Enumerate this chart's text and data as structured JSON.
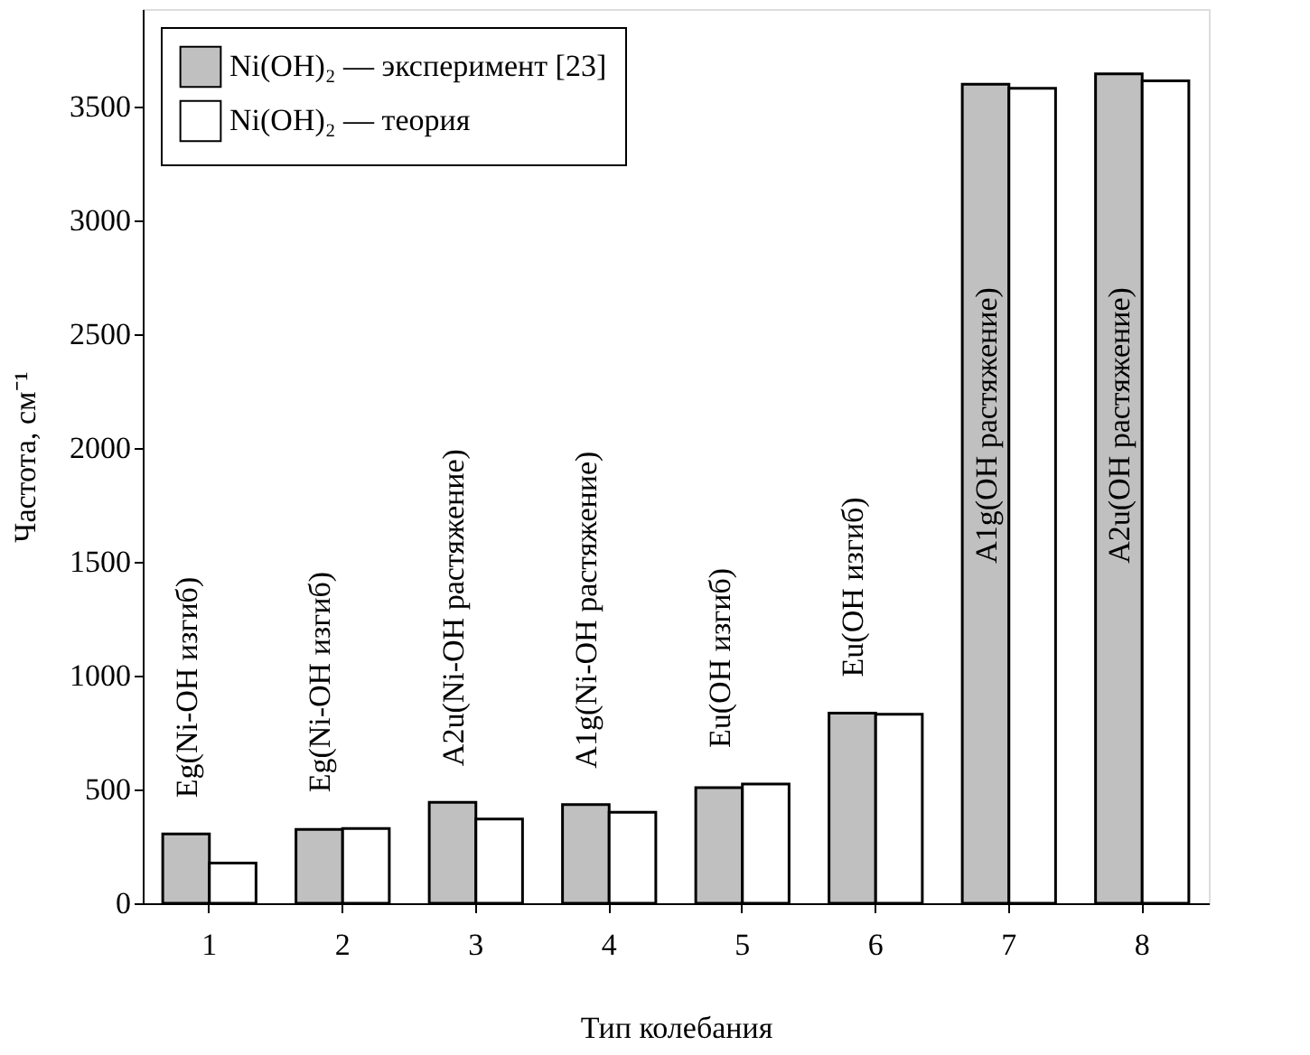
{
  "chart_data": {
    "type": "bar",
    "xlabel": "Тип колебания",
    "ylabel": "Частота, см⁻¹",
    "categories": [
      "1",
      "2",
      "3",
      "4",
      "5",
      "6",
      "7",
      "8"
    ],
    "series": [
      {
        "name": "Ni(OH)₂ — эксперимент [23]",
        "color": "#c0c0c0",
        "values": [
          305,
          325,
          444,
          434,
          508,
          836,
          3600,
          3645
        ]
      },
      {
        "name": "Ni(OH)₂ — теория",
        "color": "#ffffff",
        "values": [
          177,
          328,
          370,
          400,
          524,
          831,
          3582,
          3614
        ]
      }
    ],
    "ylim": [
      0,
      3930
    ],
    "yticks": [
      0,
      500,
      1000,
      1500,
      2000,
      2500,
      3000,
      3500
    ],
    "annotations": [
      "Eg(Ni-OH изгиб)",
      "Eg(Ni-OH изгиб)",
      "A2u(Ni-OH растяжение)",
      "A1g(Ni-OH растяжение)",
      "Eu(OH изгиб)",
      "Eu(OH изгиб)",
      "A1g(OH растяжение)",
      "A2u(OH растяжение)"
    ],
    "grid": false,
    "legend": "top left"
  }
}
